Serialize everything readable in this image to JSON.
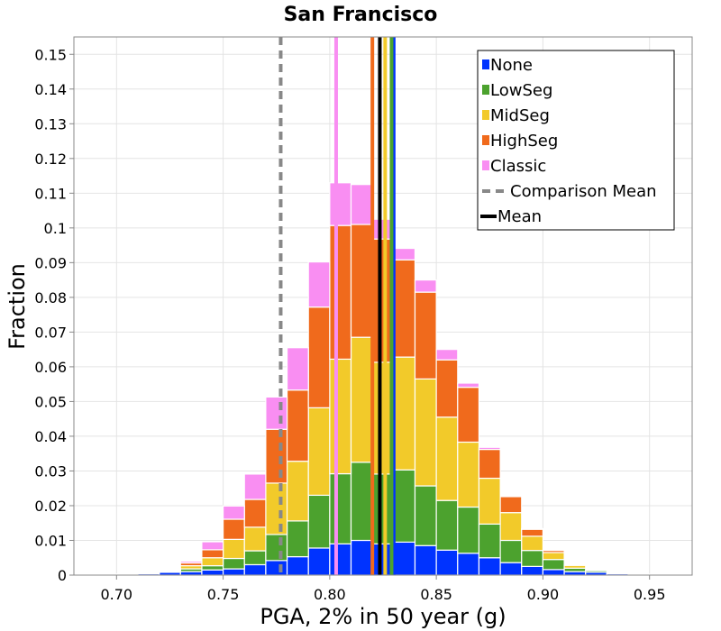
{
  "chart_data": {
    "type": "bar",
    "stacked": true,
    "title": "San Francisco",
    "xlabel": "PGA, 2% in 50 year (g)",
    "ylabel": "Fraction",
    "xlim": [
      0.68,
      0.97
    ],
    "ylim": [
      0,
      0.155
    ],
    "grid": true,
    "legend_placement": "top-right",
    "x_ticks": [
      "0.70",
      "0.75",
      "0.80",
      "0.85",
      "0.90",
      "0.95"
    ],
    "y_ticks": [
      "0",
      "0.01",
      "0.02",
      "0.03",
      "0.04",
      "0.05",
      "0.06",
      "0.07",
      "0.08",
      "0.09",
      "0.1",
      "0.11",
      "0.12",
      "0.13",
      "0.14",
      "0.15"
    ],
    "x": [
      0.705,
      0.715,
      0.725,
      0.735,
      0.745,
      0.755,
      0.765,
      0.775,
      0.785,
      0.795,
      0.805,
      0.815,
      0.825,
      0.835,
      0.845,
      0.855,
      0.865,
      0.875,
      0.885,
      0.895,
      0.905,
      0.915,
      0.925,
      0.935,
      0.945,
      0.955
    ],
    "series": [
      {
        "name": "None",
        "color": "#0033ff",
        "values": [
          0.0002,
          0.0004,
          0.0008,
          0.001,
          0.0015,
          0.0018,
          0.003,
          0.0042,
          0.0053,
          0.0078,
          0.009,
          0.01,
          0.009,
          0.0095,
          0.0085,
          0.0072,
          0.0063,
          0.005,
          0.0036,
          0.0025,
          0.0016,
          0.001,
          0.0008,
          0.0004,
          0.0003,
          0.0001
        ]
      },
      {
        "name": "LowSeg",
        "color": "#4ca22e",
        "values": [
          0.0001,
          0.0001,
          0.0003,
          0.0008,
          0.0012,
          0.003,
          0.004,
          0.0075,
          0.0103,
          0.0152,
          0.0202,
          0.0225,
          0.0201,
          0.0208,
          0.0172,
          0.0143,
          0.0133,
          0.0097,
          0.0064,
          0.0046,
          0.0029,
          0.001,
          0.0005,
          0.0001,
          0.0,
          0.0
        ]
      },
      {
        "name": "MidSeg",
        "color": "#f2ca2a",
        "values": [
          0.0,
          0.0001,
          0.0003,
          0.0009,
          0.0023,
          0.0055,
          0.0068,
          0.0148,
          0.0172,
          0.0252,
          0.033,
          0.036,
          0.0322,
          0.0325,
          0.0308,
          0.024,
          0.0187,
          0.0132,
          0.008,
          0.0041,
          0.002,
          0.0008,
          0.0001,
          0.0,
          0.0,
          0.0
        ]
      },
      {
        "name": "HighSeg",
        "color": "#f06a1c",
        "values": [
          0.0,
          0.0001,
          0.0003,
          0.0008,
          0.0023,
          0.0058,
          0.008,
          0.0155,
          0.0205,
          0.029,
          0.0385,
          0.0325,
          0.0355,
          0.028,
          0.025,
          0.0165,
          0.0158,
          0.0083,
          0.0046,
          0.002,
          0.0006,
          0.0002,
          0.0,
          0.0,
          0.0,
          0.0
        ]
      },
      {
        "name": "Classic",
        "color": "#f98ef2",
        "values": [
          0.0,
          0.0001,
          0.0002,
          0.0005,
          0.0023,
          0.0038,
          0.0073,
          0.0093,
          0.0122,
          0.013,
          0.0123,
          0.0115,
          0.0057,
          0.0033,
          0.0035,
          0.003,
          0.0012,
          0.0006,
          0.0,
          0.0002,
          0.0,
          0.0,
          0.0,
          0.0,
          0.0,
          0.0
        ]
      }
    ],
    "mean_lines": [
      {
        "series": "None",
        "x": 0.83,
        "color": "#0033ff"
      },
      {
        "series": "LowSeg",
        "x": 0.829,
        "color": "#4ca22e"
      },
      {
        "series": "MidSeg",
        "x": 0.826,
        "color": "#f2ca2a"
      },
      {
        "series": "HighSeg",
        "x": 0.82,
        "color": "#f06a1c"
      },
      {
        "series": "Classic",
        "x": 0.803,
        "color": "#f98ef2"
      },
      {
        "series": "Mean",
        "x": 0.8235,
        "color": "#000000"
      },
      {
        "series": "Comparison Mean",
        "x": 0.777,
        "color": "#888888"
      }
    ],
    "legend": [
      {
        "label": "None",
        "color": "#0033ff",
        "kind": "box"
      },
      {
        "label": "LowSeg",
        "color": "#4ca22e",
        "kind": "box"
      },
      {
        "label": "MidSeg",
        "color": "#f2ca2a",
        "kind": "box"
      },
      {
        "label": "HighSeg",
        "color": "#f06a1c",
        "kind": "box"
      },
      {
        "label": "Classic",
        "color": "#f98ef2",
        "kind": "box"
      },
      {
        "label": "Comparison Mean",
        "color": "#888888",
        "kind": "dashed"
      },
      {
        "label": "Mean",
        "color": "#000000",
        "kind": "solid"
      }
    ]
  }
}
